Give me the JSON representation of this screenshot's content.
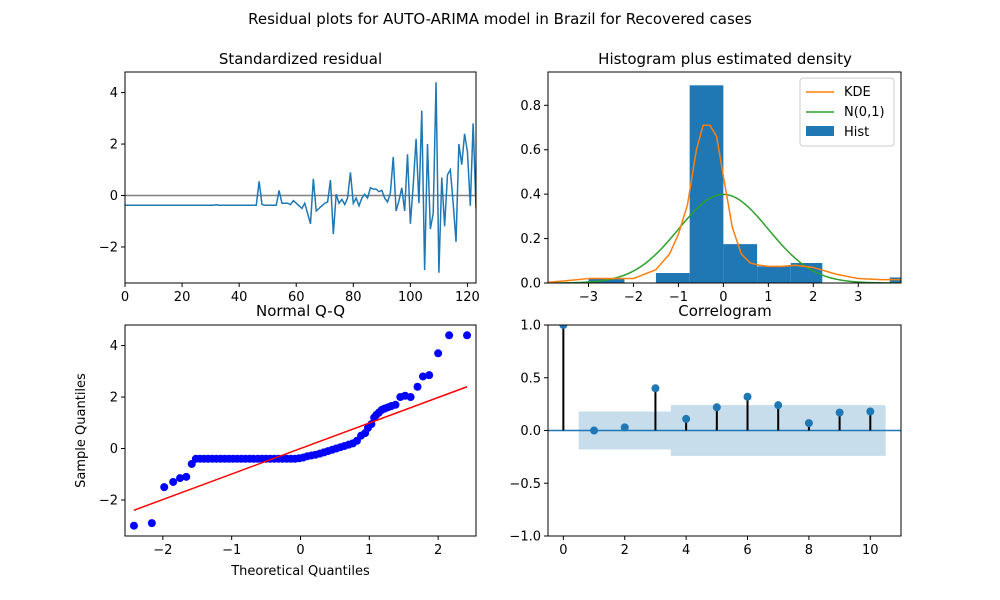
{
  "suptitle": "Residual plots for AUTO-ARIMA model in Brazil for Recovered cases",
  "chart_data": [
    {
      "type": "line",
      "title": "Standardized residual",
      "xlabel": "",
      "ylabel": "",
      "xlim": [
        0,
        123
      ],
      "ylim": [
        -3.4,
        4.8
      ],
      "xticks": [
        0,
        20,
        40,
        60,
        80,
        100,
        120
      ],
      "yticks": [
        -2,
        0,
        2,
        4
      ],
      "ytick_labels": [
        "−2",
        "0",
        "2",
        "4"
      ],
      "hline": 0,
      "colors": {
        "line": "#1f77b4",
        "zero": "#808080"
      },
      "series": [
        {
          "values": [
            -0.38,
            -0.38,
            -0.38,
            -0.38,
            -0.38,
            -0.38,
            -0.38,
            -0.38,
            -0.38,
            -0.38,
            -0.38,
            -0.38,
            -0.38,
            -0.38,
            -0.38,
            -0.38,
            -0.38,
            -0.38,
            -0.38,
            -0.38,
            -0.38,
            -0.38,
            -0.38,
            -0.38,
            -0.38,
            -0.38,
            -0.38,
            -0.38,
            -0.38,
            -0.38,
            -0.38,
            -0.38,
            -0.36,
            -0.38,
            -0.38,
            -0.38,
            -0.38,
            -0.38,
            -0.38,
            -0.38,
            -0.38,
            -0.38,
            -0.38,
            -0.38,
            -0.38,
            -0.38,
            -0.38,
            0.55,
            -0.35,
            -0.38,
            -0.38,
            -0.38,
            -0.38,
            -0.38,
            0.2,
            -0.3,
            -0.3,
            -0.3,
            -0.35,
            -0.2,
            -0.3,
            -0.4,
            -0.5,
            -0.3,
            -0.7,
            -1.1,
            0.65,
            -0.6,
            -0.5,
            -0.4,
            -0.3,
            -0.25,
            0.6,
            -1.5,
            0.05,
            -0.3,
            -0.15,
            -0.35,
            -0.1,
            0.9,
            -0.3,
            -0.1,
            -0.4,
            -0.1,
            0.05,
            -0.1,
            0.3,
            0.25,
            0.25,
            0.15,
            0.2,
            -0.1,
            -0.25,
            0.1,
            1.5,
            -0.6,
            -0.2,
            0.3,
            -0.6,
            1.6,
            -1.1,
            0.4,
            2.2,
            -0.3,
            3.3,
            -2.9,
            2.0,
            -1.3,
            -0.7,
            4.4,
            -3.0,
            0.7,
            -1.2,
            0.8,
            1.0,
            -0.3,
            -1.8,
            2.0,
            1.2,
            2.4,
            1.7,
            -0.4,
            2.8,
            -0.5,
            0.6
          ]
        }
      ]
    },
    {
      "type": "bar",
      "title": "Histogram plus estimated density",
      "xlim": [
        -3.9,
        3.95
      ],
      "ylim": [
        0,
        0.95
      ],
      "xticks": [
        -3,
        -2,
        -1,
        0,
        1,
        2,
        3
      ],
      "xtick_labels": [
        "−3",
        "−2",
        "−1",
        "0",
        "1",
        "2",
        "3"
      ],
      "yticks": [
        0.0,
        0.2,
        0.4,
        0.6,
        0.8
      ],
      "ytick_labels": [
        "0.0",
        "0.2",
        "0.4",
        "0.6",
        "0.8"
      ],
      "legend": [
        "KDE",
        "N(0,1)",
        "Hist"
      ],
      "legend_position": "top-right",
      "colors": {
        "kde": "#ff7f0e",
        "normal": "#2ca02c",
        "hist": "#1f77b4"
      },
      "bin_edges": [
        -3.0,
        -2.2,
        -1.5,
        -0.75,
        0.0,
        0.75,
        1.5,
        2.2,
        3.0,
        3.7,
        4.4
      ],
      "bin_heights": [
        0.02,
        0.0,
        0.045,
        0.89,
        0.175,
        0.075,
        0.09,
        0.0,
        0.0,
        0.025
      ],
      "kde": {
        "x": [
          -3.9,
          -3.5,
          -3.0,
          -2.5,
          -2.0,
          -1.5,
          -1.2,
          -1.0,
          -0.8,
          -0.6,
          -0.45,
          -0.3,
          -0.15,
          0.0,
          0.2,
          0.4,
          0.6,
          0.8,
          1.0,
          1.3,
          1.6,
          2.0,
          2.5,
          3.0,
          3.5,
          3.95
        ],
        "y": [
          0.003,
          0.01,
          0.02,
          0.02,
          0.02,
          0.06,
          0.13,
          0.22,
          0.35,
          0.6,
          0.71,
          0.71,
          0.66,
          0.48,
          0.25,
          0.13,
          0.09,
          0.08,
          0.075,
          0.075,
          0.08,
          0.07,
          0.04,
          0.02,
          0.015,
          0.015
        ]
      },
      "normal": {
        "mean": 0,
        "std": 1
      }
    },
    {
      "type": "scatter",
      "title": "Normal Q-Q",
      "xlabel": "Theoretical Quantiles",
      "ylabel": "Sample Quantiles",
      "xlim": [
        -2.55,
        2.55
      ],
      "ylim": [
        -3.4,
        4.8
      ],
      "xticks": [
        -2,
        -1,
        0,
        1,
        2
      ],
      "xtick_labels": [
        "−2",
        "−1",
        "0",
        "1",
        "2"
      ],
      "yticks": [
        -2,
        0,
        2,
        4
      ],
      "ytick_labels": [
        "−2",
        "0",
        "2",
        "4"
      ],
      "colors": {
        "points": "#0000ff",
        "line": "#ff0000"
      },
      "ref_line": {
        "x": [
          -2.42,
          2.42
        ],
        "y": [
          -2.4,
          2.4
        ]
      },
      "points": {
        "x": [
          -2.42,
          -2.16,
          -1.98,
          -1.85,
          -1.75,
          -1.66,
          -1.58,
          -1.52,
          -1.46,
          -1.4,
          -1.34,
          -1.28,
          -1.22,
          -1.16,
          -1.1,
          -1.04,
          -0.98,
          -0.92,
          -0.86,
          -0.8,
          -0.74,
          -0.68,
          -0.62,
          -0.56,
          -0.5,
          -0.44,
          -0.38,
          -0.32,
          -0.26,
          -0.2,
          -0.14,
          -0.08,
          -0.02,
          0.04,
          0.1,
          0.16,
          0.22,
          0.28,
          0.34,
          0.4,
          0.46,
          0.52,
          0.58,
          0.64,
          0.7,
          0.76,
          0.82,
          0.88,
          0.94,
          0.98,
          1.03,
          1.07,
          1.1,
          1.14,
          1.18,
          1.22,
          1.27,
          1.32,
          1.38,
          1.45,
          1.52,
          1.6,
          1.7,
          1.78,
          1.87,
          2.0,
          2.16,
          2.42
        ],
        "y": [
          -3.0,
          -2.9,
          -1.5,
          -1.3,
          -1.15,
          -1.1,
          -0.6,
          -0.4,
          -0.4,
          -0.4,
          -0.4,
          -0.4,
          -0.4,
          -0.4,
          -0.4,
          -0.4,
          -0.4,
          -0.4,
          -0.4,
          -0.4,
          -0.4,
          -0.4,
          -0.4,
          -0.4,
          -0.4,
          -0.4,
          -0.4,
          -0.4,
          -0.4,
          -0.4,
          -0.4,
          -0.4,
          -0.38,
          -0.35,
          -0.3,
          -0.27,
          -0.24,
          -0.2,
          -0.15,
          -0.1,
          -0.05,
          0.0,
          0.05,
          0.1,
          0.15,
          0.2,
          0.3,
          0.5,
          0.6,
          0.8,
          0.95,
          1.2,
          1.3,
          1.4,
          1.5,
          1.55,
          1.6,
          1.65,
          1.7,
          2.0,
          2.05,
          2.0,
          2.4,
          2.8,
          2.85,
          3.7,
          4.4,
          4.4
        ]
      }
    },
    {
      "type": "bar",
      "title": "Correlogram",
      "xlim": [
        -0.5,
        11
      ],
      "ylim": [
        -1.0,
        1.0
      ],
      "xticks": [
        0,
        2,
        4,
        6,
        8,
        10
      ],
      "yticks": [
        -1.0,
        -0.5,
        0.0,
        0.5,
        1.0
      ],
      "ytick_labels": [
        "−1.0",
        "−0.5",
        "0.0",
        "0.5",
        "1.0"
      ],
      "colors": {
        "stems": "#000000",
        "markers": "#1f77b4",
        "band": "#1f77b4",
        "zero": "#1f77b4"
      },
      "lags": [
        0,
        1,
        2,
        3,
        4,
        5,
        6,
        7,
        8,
        9,
        10
      ],
      "acf": [
        1.0,
        0.0,
        0.03,
        0.4,
        0.11,
        0.22,
        0.32,
        0.24,
        0.07,
        0.17,
        0.18
      ],
      "conf_band": {
        "x": [
          0.5,
          3.5,
          3.5,
          10.5
        ],
        "upper": [
          0.18,
          0.18,
          0.24,
          0.24
        ]
      }
    }
  ]
}
